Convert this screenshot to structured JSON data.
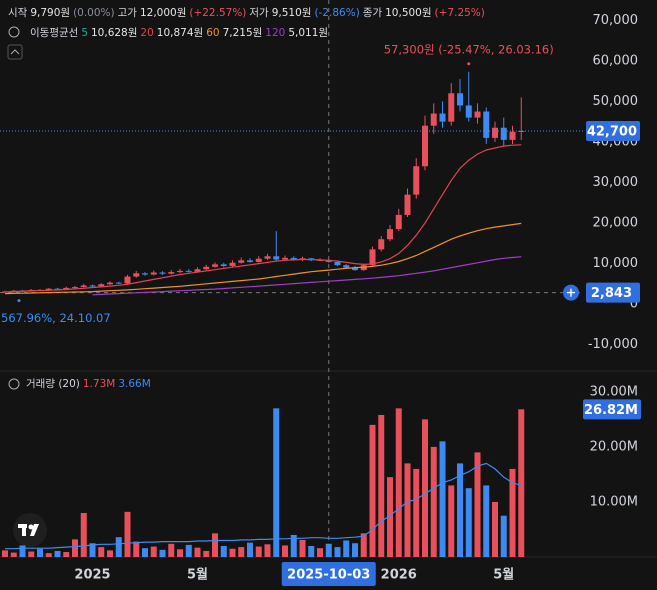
{
  "header": {
    "ohlc": [
      {
        "label": "시작",
        "value": "9,790원",
        "change": "(0.00%)"
      },
      {
        "label": "고가",
        "value": "12,000원",
        "change": "(+22.57%)"
      },
      {
        "label": "저가",
        "value": "9,510원",
        "change": "(-2.86%)"
      },
      {
        "label": "종가",
        "value": "10,500원",
        "change": "(+7.25%)"
      }
    ],
    "ma_title": "이동평균선",
    "ma_legend": [
      {
        "period": "5",
        "value": "10,628원"
      },
      {
        "period": "20",
        "value": "10,874원"
      },
      {
        "period": "60",
        "value": "7,215원"
      },
      {
        "period": "120",
        "value": "5,011원"
      }
    ],
    "volume_title": "거래량 (20)",
    "volume_values": [
      "1.73M",
      "3.66M"
    ]
  },
  "chart_data": [
    {
      "type": "candlestick",
      "categories": [
        null,
        null,
        null,
        null,
        null,
        null,
        null,
        null,
        null,
        null,
        "2025",
        null,
        null,
        null,
        null,
        null,
        null,
        null,
        null,
        null,
        null,
        null,
        "5월",
        null,
        null,
        null,
        null,
        null,
        null,
        null,
        null,
        null,
        null,
        null,
        null,
        null,
        null,
        null,
        null,
        null,
        null,
        null,
        null,
        null,
        null,
        "2026",
        null,
        null,
        null,
        null,
        null,
        null,
        null,
        null,
        null,
        null,
        null,
        "5월",
        null,
        null
      ],
      "open": [
        2900,
        3100,
        3300,
        3200,
        3500,
        3400,
        3800,
        3600,
        4000,
        4200,
        4600,
        4400,
        4900,
        5300,
        5100,
        6800,
        7600,
        7300,
        7800,
        7500,
        7900,
        8200,
        8000,
        8600,
        9200,
        9800,
        9400,
        10200,
        10800,
        10400,
        11200,
        11800,
        11000,
        11400,
        11000,
        11300,
        10800,
        10900,
        10400,
        9600,
        9000,
        8400,
        9600,
        13500,
        16000,
        18500,
        22000,
        27000,
        34000,
        44000,
        47000,
        45000,
        52000,
        49000,
        46000,
        47500,
        41000,
        43500,
        40500,
        42500
      ],
      "high": [
        3300,
        3500,
        3500,
        3700,
        3700,
        4000,
        4000,
        4300,
        4500,
        5000,
        4800,
        5200,
        5600,
        5500,
        7200,
        8200,
        7900,
        8300,
        8100,
        8400,
        8700,
        8600,
        9100,
        9700,
        10300,
        10200,
        10800,
        11500,
        11300,
        11800,
        12400,
        18000,
        12000,
        11800,
        11700,
        11400,
        11300,
        11100,
        10600,
        9900,
        9400,
        10000,
        14200,
        16800,
        19500,
        23500,
        28500,
        36000,
        46500,
        49500,
        50000,
        54500,
        55500,
        57300,
        49500,
        48500,
        45000,
        46000,
        44000,
        51000
      ],
      "low": [
        2843,
        2950,
        3050,
        3100,
        3300,
        3250,
        3500,
        3450,
        3850,
        4050,
        4200,
        4300,
        4700,
        4900,
        4950,
        6500,
        7000,
        7100,
        7200,
        7300,
        7600,
        7800,
        7800,
        8400,
        9000,
        9100,
        9100,
        10000,
        10200,
        10200,
        10900,
        10700,
        10800,
        10700,
        10600,
        10600,
        10600,
        10200,
        9400,
        8800,
        8200,
        8200,
        9400,
        13000,
        15500,
        18000,
        21500,
        26000,
        33000,
        42000,
        43500,
        44000,
        47500,
        45000,
        44500,
        39500,
        40000,
        39000,
        39500,
        40500
      ],
      "close": [
        3100,
        3300,
        3200,
        3500,
        3400,
        3800,
        3600,
        4000,
        4200,
        4600,
        4400,
        4900,
        5300,
        5100,
        6800,
        7600,
        7300,
        7800,
        7500,
        7900,
        8200,
        8000,
        8600,
        9200,
        9800,
        9400,
        10200,
        10800,
        10400,
        11200,
        11800,
        11000,
        11400,
        11000,
        11300,
        10800,
        10900,
        10400,
        9600,
        9000,
        8400,
        9600,
        13500,
        16000,
        18500,
        22000,
        27000,
        34000,
        44000,
        47000,
        45000,
        52000,
        49000,
        46000,
        47500,
        41000,
        43500,
        40500,
        42500,
        42700
      ],
      "value_labels": [
        null,
        null,
        null,
        null,
        null,
        null,
        null,
        null,
        null,
        null,
        null,
        null,
        null,
        null,
        null,
        null,
        null,
        null,
        null,
        null,
        null,
        null,
        null,
        null,
        null,
        null,
        null,
        null,
        null,
        null,
        null,
        null,
        null,
        null,
        null,
        null,
        null,
        null,
        null,
        null,
        null,
        null,
        null,
        null,
        null,
        null,
        null,
        null,
        null,
        null,
        null,
        null,
        null,
        null,
        null,
        null,
        null,
        null,
        null,
        "42,700"
      ],
      "up_color": "#e8505b",
      "down_color": "#3d8bf2",
      "lines": [
        {
          "color": "#e0434f",
          "values": [
            3000,
            3100,
            3200,
            3250,
            3350,
            3400,
            3500,
            3600,
            3750,
            3900,
            4100,
            4250,
            4450,
            4650,
            4900,
            5300,
            5700,
            6100,
            6500,
            6900,
            7300,
            7600,
            7900,
            8200,
            8500,
            8800,
            9100,
            9400,
            9700,
            10000,
            10300,
            10600,
            10800,
            10900,
            11000,
            11000,
            10900,
            10800,
            10600,
            10300,
            10000,
            9800,
            9900,
            10400,
            11200,
            12500,
            14500,
            17000,
            20000,
            23500,
            27000,
            30500,
            33500,
            35500,
            37000,
            38000,
            38500,
            39000,
            39200,
            39300
          ]
        },
        {
          "color": "#f0922c",
          "values": [
            2600,
            2650,
            2700,
            2750,
            2800,
            2850,
            2900,
            2950,
            3000,
            3050,
            3100,
            3200,
            3300,
            3400,
            3500,
            3650,
            3800,
            3950,
            4100,
            4250,
            4400,
            4600,
            4800,
            5000,
            5200,
            5400,
            5600,
            5800,
            6000,
            6200,
            6500,
            6800,
            7100,
            7400,
            7700,
            8000,
            8200,
            8400,
            8600,
            8800,
            9000,
            9100,
            9300,
            9600,
            10000,
            10500,
            11200,
            12000,
            13000,
            14000,
            15000,
            16000,
            16800,
            17500,
            18100,
            18600,
            19000,
            19300,
            19600,
            19900
          ]
        },
        {
          "color": "#9c3fc4",
          "values": [
            null,
            null,
            null,
            null,
            null,
            null,
            null,
            null,
            null,
            null,
            2300,
            2400,
            2500,
            2600,
            2700,
            2800,
            2900,
            3000,
            3100,
            3200,
            3300,
            3400,
            3500,
            3600,
            3700,
            3850,
            4000,
            4150,
            4300,
            4450,
            4600,
            4750,
            4900,
            5050,
            5200,
            5350,
            5500,
            5650,
            5800,
            5950,
            6100,
            6250,
            6400,
            6600,
            6800,
            7000,
            7300,
            7600,
            7900,
            8200,
            8600,
            9000,
            9400,
            9800,
            10200,
            10600,
            11000,
            11300,
            11500,
            11700
          ]
        }
      ],
      "ylim": [
        -16000,
        75000
      ],
      "yticks": [
        {
          "value": -10000,
          "label": "-10,000"
        },
        0,
        {
          "value": 10000,
          "label": "10,000"
        },
        {
          "value": 20000,
          "label": "20,000"
        },
        {
          "value": 30000,
          "label": "30,000"
        },
        {
          "value": 40000,
          "label": "40,000"
        },
        {
          "value": 50000,
          "label": "50,000"
        },
        {
          "value": 60000,
          "label": "60,000"
        },
        {
          "value": 70000,
          "label": "70,000"
        }
      ],
      "annotations": [
        "57,300원 (-25.47%, 26.03.16)",
        "567.96%, 24.10.07"
      ],
      "crosshair": {
        "date": "2025-10-03",
        "price": 2843,
        "price_label": "2,843"
      },
      "grid": false
    },
    {
      "type": "bar",
      "values": [
        1.2,
        0.8,
        2.1,
        1.0,
        1.5,
        0.7,
        1.1,
        0.9,
        3.2,
        8.0,
        2.5,
        1.8,
        1.2,
        3.6,
        8.2,
        2.8,
        1.6,
        1.9,
        1.3,
        2.4,
        1.4,
        2.2,
        1.7,
        1.1,
        4.3,
        2.0,
        1.5,
        1.8,
        2.6,
        1.9,
        2.3,
        27.0,
        2.1,
        4.0,
        3.1,
        2.0,
        1.6,
        2.4,
        1.8,
        3.0,
        2.5,
        4.3,
        24.0,
        25.8,
        14.5,
        27.0,
        17.0,
        16.0,
        25.0,
        20.0,
        21.0,
        13.0,
        17.0,
        12.5,
        19.0,
        13.0,
        10.0,
        7.5,
        16.0,
        26.82
      ],
      "value_labels": [
        null,
        null,
        null,
        null,
        null,
        null,
        null,
        null,
        null,
        null,
        null,
        null,
        null,
        null,
        null,
        null,
        null,
        null,
        null,
        null,
        null,
        null,
        null,
        null,
        null,
        null,
        null,
        null,
        null,
        null,
        null,
        null,
        null,
        null,
        null,
        null,
        null,
        null,
        null,
        null,
        null,
        null,
        null,
        null,
        null,
        null,
        null,
        null,
        null,
        null,
        null,
        null,
        null,
        null,
        null,
        null,
        null,
        null,
        null,
        "26.82M"
      ],
      "ma": {
        "color": "#3d8bf2",
        "values": [
          1.5,
          1.5,
          1.6,
          1.6,
          1.6,
          1.6,
          1.7,
          1.8,
          1.9,
          2.0,
          2.2,
          2.3,
          2.3,
          2.4,
          2.5,
          2.6,
          2.7,
          2.7,
          2.8,
          2.8,
          2.8,
          2.8,
          2.9,
          2.9,
          3.0,
          3.0,
          3.0,
          3.1,
          3.1,
          3.2,
          3.2,
          3.3,
          3.3,
          3.4,
          3.4,
          3.5,
          3.5,
          3.4,
          3.4,
          3.5,
          3.6,
          3.8,
          5.0,
          6.5,
          7.5,
          8.8,
          10.0,
          10.5,
          11.5,
          12.5,
          13.5,
          14.0,
          14.8,
          15.5,
          16.5,
          17.0,
          16.0,
          14.5,
          13.5,
          13.0
        ]
      },
      "ylim": [
        0,
        33.6
      ],
      "yticks": [
        {
          "value": 10,
          "label": "10.00M"
        },
        {
          "value": 20,
          "label": "20.00M"
        },
        {
          "value": 30,
          "label": "30.00M"
        }
      ],
      "grid": false
    }
  ]
}
